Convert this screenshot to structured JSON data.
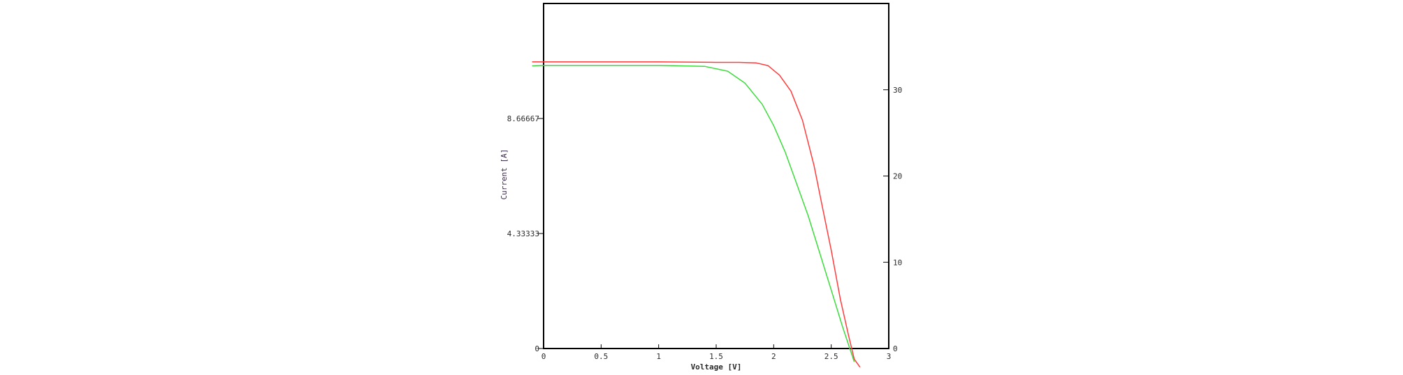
{
  "chart_data": {
    "type": "line",
    "xlabel": "Voltage [V]",
    "ylabel": "Current [A]",
    "xlim": [
      0,
      3
    ],
    "ylim_left": [
      0,
      13
    ],
    "ylim_right": [
      0,
      40
    ],
    "x_ticks": [
      "0",
      "0.5",
      "1",
      "1.5",
      "2",
      "2.5",
      "3"
    ],
    "y_ticks_left": [
      "0",
      "4.33333",
      "8.66667"
    ],
    "y_ticks_right": [
      "0",
      "10",
      "20",
      "30"
    ],
    "grid": false,
    "series": [
      {
        "color": "#ff3b3b",
        "axis": "left",
        "x": [
          -0.1,
          0,
          0.5,
          1.0,
          1.5,
          1.7,
          1.85,
          1.95,
          2.05,
          2.15,
          2.25,
          2.35,
          2.42,
          2.5,
          2.58,
          2.65,
          2.7,
          2.75
        ],
        "y": [
          10.8,
          10.8,
          10.8,
          10.8,
          10.78,
          10.78,
          10.76,
          10.66,
          10.3,
          9.7,
          8.6,
          6.9,
          5.4,
          3.7,
          1.85,
          0.5,
          -0.4,
          -0.7
        ]
      },
      {
        "color": "#3bdc3b",
        "axis": "left",
        "x": [
          -0.1,
          0,
          0.5,
          1.0,
          1.4,
          1.6,
          1.75,
          1.9,
          2.0,
          2.1,
          2.2,
          2.3,
          2.4,
          2.5,
          2.6,
          2.7
        ],
        "y": [
          10.65,
          10.67,
          10.67,
          10.67,
          10.63,
          10.45,
          10.0,
          9.2,
          8.4,
          7.4,
          6.2,
          5.0,
          3.6,
          2.2,
          0.8,
          -0.5
        ]
      }
    ]
  }
}
